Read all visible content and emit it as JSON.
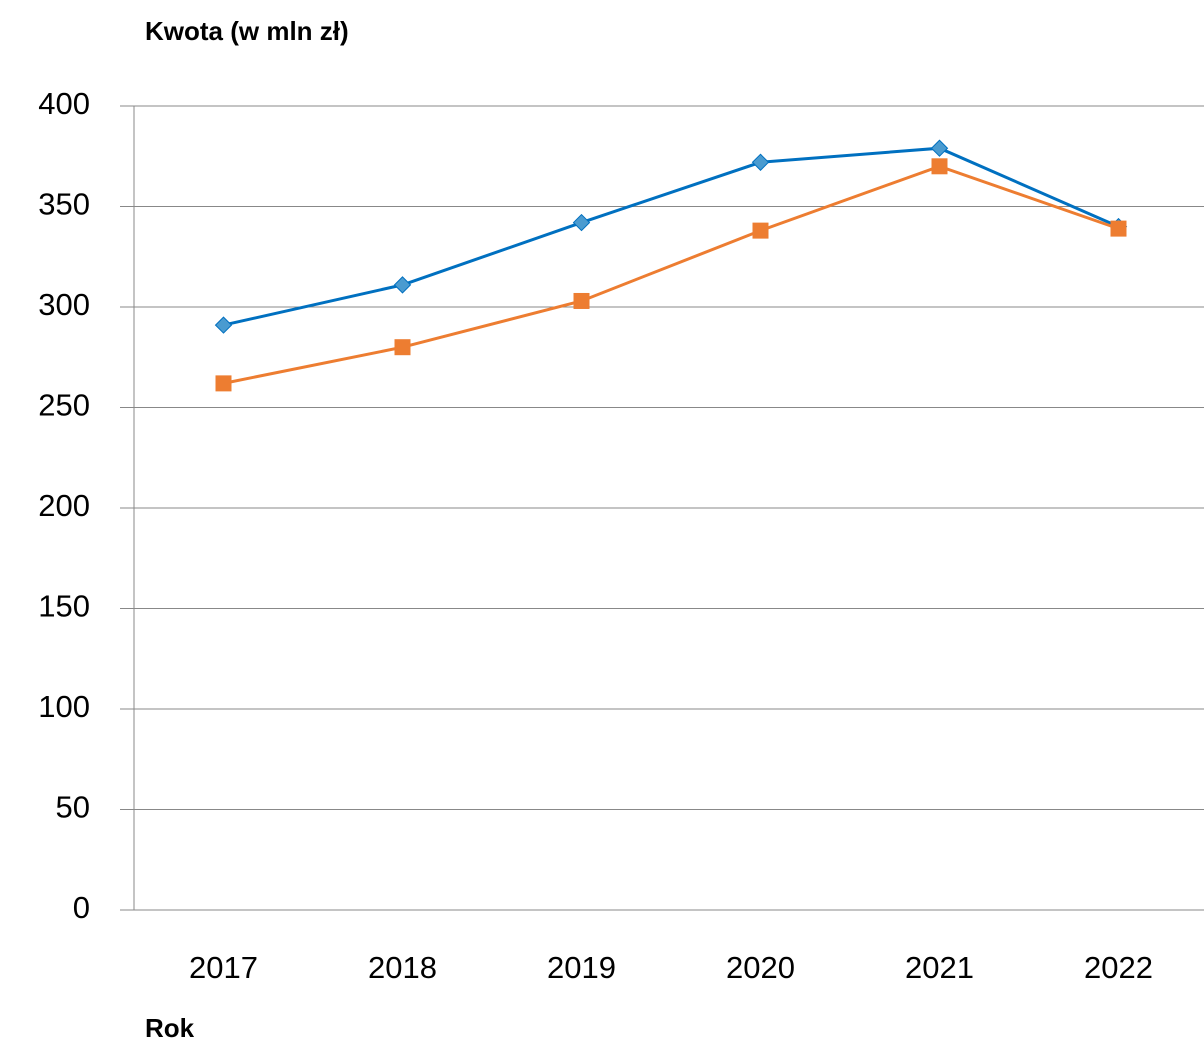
{
  "chart_data": {
    "type": "line",
    "y_label": "Kwota (w mln zł)",
    "x_label": "Rok",
    "categories": [
      "2017",
      "2018",
      "2019",
      "2020",
      "2021",
      "2022"
    ],
    "series": [
      {
        "color": "#0070c0",
        "marker": "diamond",
        "marker_color": "#4a9bd0",
        "values": [
          291,
          311,
          342,
          372,
          379,
          340
        ]
      },
      {
        "color": "#ed7d31",
        "marker": "square",
        "marker_color": "#ed7d31",
        "values": [
          262,
          280,
          303,
          338,
          370,
          339
        ]
      }
    ],
    "ylim": [
      0,
      400
    ],
    "yticks": [
      0,
      50,
      100,
      150,
      200,
      250,
      300,
      350,
      400
    ],
    "grid": true
  }
}
